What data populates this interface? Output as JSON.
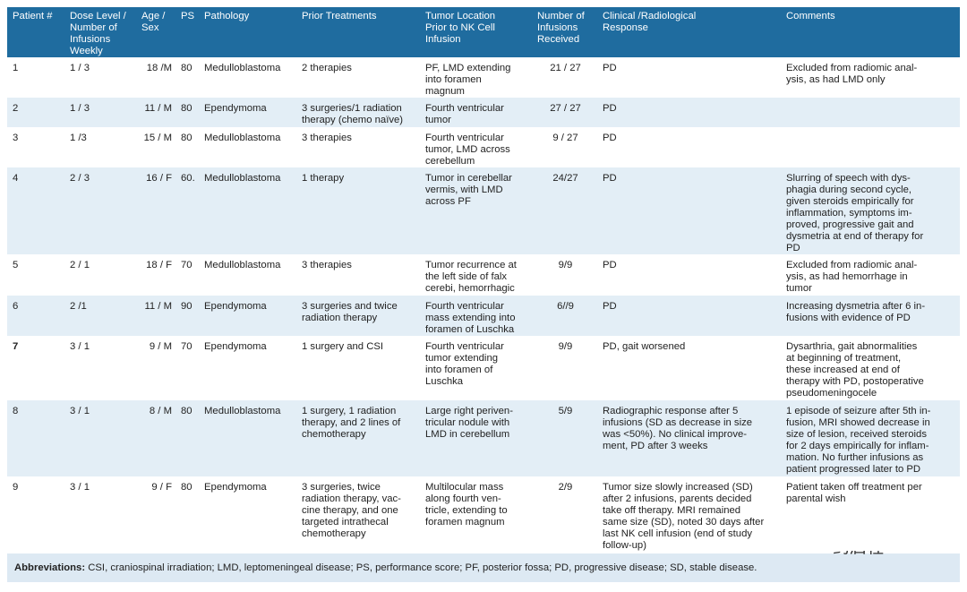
{
  "table": {
    "header": [
      "Patient #",
      "Dose Level /\nNumber of\nInfusions\nWeekly",
      "Age /\nSex",
      "PS",
      "Pathology",
      "Prior Treatments",
      "Tumor Location\nPrior to NK Cell\nInfusion",
      "Number of\nInfusions\nReceived",
      "Clinical /Radiological\nResponse",
      "Comments"
    ],
    "rows": [
      [
        "1",
        "1 / 3",
        "18 /M",
        "80",
        "Medulloblastoma",
        "2 therapies",
        "PF, LMD extending\ninto foramen\nmagnum",
        "21 / 27",
        "PD",
        "Excluded from radiomic anal-\nysis, as had LMD only"
      ],
      [
        "2",
        "1 / 3",
        "11 / M",
        "80",
        "Ependymoma",
        "3 surgeries/1 radiation\ntherapy (chemo naïve)",
        "Fourth ventricular\ntumor",
        "27 / 27",
        "PD",
        null
      ],
      [
        "3",
        "1 /3",
        "15 / M",
        "80",
        "Medulloblastoma",
        "3 therapies",
        "Fourth ventricular\ntumor, LMD across\ncerebellum",
        "9 / 27",
        "PD",
        null
      ],
      [
        "4",
        "2 / 3",
        "16 / F",
        "60.",
        "Medulloblastoma",
        "1 therapy",
        "Tumor in cerebellar\nvermis, with LMD\nacross PF",
        "24/27",
        "PD",
        "Slurring of speech with dys-\nphagia during second cycle,\ngiven steroids empirically for\ninflammation, symptoms im-\nproved, progressive gait and\ndysmetria at end of therapy for\nPD"
      ],
      [
        "5",
        "2 / 1",
        "18 / F",
        "70",
        "Medulloblastoma",
        "3 therapies",
        "Tumor recurrence at\nthe left side of falx\ncerebi, hemorrhagic",
        "9/9",
        "PD",
        "Excluded from radiomic anal-\nysis, as had hemorrhage in\ntumor"
      ],
      [
        "6",
        "2 /1",
        "11 / M",
        "90",
        "Ependymoma",
        "3 surgeries and twice\nradiation therapy",
        "Fourth ventricular\nmass extending into\nforamen of Luschka",
        "6//9",
        "PD",
        "Increasing dysmetria after 6 in-\nfusions with evidence of PD"
      ],
      [
        "7",
        "3 / 1",
        "9 / M",
        "70",
        "Ependymoma",
        "1 surgery and CSI",
        "Fourth ventricular\ntumor extending\ninto foramen of\nLuschka",
        "9/9",
        "PD, gait worsened",
        "Dysarthria, gait abnormalities\nat beginning of treatment,\nthese increased at end of\ntherapy with PD, postoperative\npseudomeningocele"
      ],
      [
        "8",
        "3 / 1",
        "8 / M",
        "80",
        "Medulloblastoma",
        "1 surgery, 1 radiation\ntherapy, and 2 lines of\nchemotherapy",
        "Large right periven-\ntricular nodule with\nLMD in cerebellum",
        "5/9",
        "Radiographic response after 5\ninfusions (SD as decrease in size\nwas <50%). No clinical improve-\nment, PD after 3 weeks",
        "1 episode of seizure after 5th in-\nfusion, MRI showed decrease in\nsize of lesion, received steroids\nfor 2 days empirically for inflam-\nmation. No further infusions as\npatient progressed later to PD"
      ],
      [
        "9",
        "3 / 1",
        "9 / F",
        "80",
        "Ependymoma",
        "3 surgeries, twice\nradiation therapy, vac-\ncine therapy, and one\ntargeted intrathecal\nchemotherapy",
        "Multilocular mass\nalong fourth ven-\ntricle, extending to\nforamen magnum",
        "2/9",
        "Tumor size slowly increased (SD)\nafter 2 infusions, parents decided\ntake off therapy. MRI remained\nsame size (SD), noted 30 days after\nlast NK cell infusion (end of study\nfollow-up)",
        "Patient taken off treatment per\nparental wish"
      ]
    ]
  },
  "footnote": {
    "label": "Abbreviations:",
    "text": "CSI, craniospinal irradiation; LMD, leptomeningeal disease; PS, performance score; PF, posterior fossa; PD, progressive disease; SD, stable disease."
  },
  "watermark": "药启程"
}
